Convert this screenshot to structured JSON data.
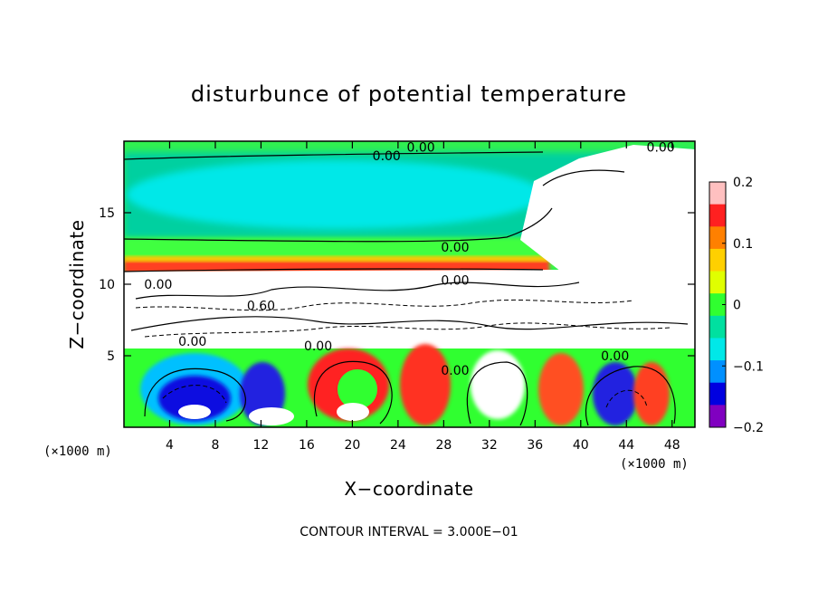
{
  "chart_data": {
    "type": "heatmap",
    "title": "disturbunce of potential temperature",
    "xlabel": "X−coordinate",
    "ylabel": "Z−coordinate",
    "x_unit": "(×1000 m)",
    "y_unit": "(×1000 m)",
    "xlim": [
      0,
      50
    ],
    "ylim": [
      0,
      20
    ],
    "x_ticks": [
      4,
      8,
      12,
      16,
      20,
      24,
      28,
      32,
      36,
      40,
      44,
      48
    ],
    "y_ticks": [
      5,
      10,
      15
    ],
    "colorbar": {
      "ticks": [
        0.2,
        0.1,
        0,
        -0.1,
        -0.2
      ],
      "tick_labels": [
        "0.2",
        "0.1",
        "0",
        "−0.1",
        "−0.2"
      ],
      "range": [
        -0.2,
        0.2
      ],
      "colors": [
        "#ffc0c0",
        "#ff2020",
        "#ff8000",
        "#ffd000",
        "#e0ff00",
        "#30ff30",
        "#00e0a0",
        "#00e8e8",
        "#0090ff",
        "#0000e0",
        "#8000c0"
      ]
    },
    "contour_labels": [
      {
        "text": "0.00",
        "x": 23,
        "z": 19.0
      },
      {
        "text": "0.00",
        "x": 26,
        "z": 19.6
      },
      {
        "text": "0.00",
        "x": 47,
        "z": 19.6
      },
      {
        "text": "0.00",
        "x": 29,
        "z": 12.6
      },
      {
        "text": "0.00",
        "x": 29,
        "z": 10.3
      },
      {
        "text": "0.00",
        "x": 3,
        "z": 10.0
      },
      {
        "text": "0.60",
        "x": 12,
        "z": 8.5
      },
      {
        "text": "0.00",
        "x": 6,
        "z": 6.0
      },
      {
        "text": "0.00",
        "x": 17,
        "z": 5.7
      },
      {
        "text": "0.00",
        "x": 29,
        "z": 4.0
      },
      {
        "text": "0.00",
        "x": 43,
        "z": 5.0
      }
    ],
    "contour_interval": "CONTOUR INTERVAL = 3.000E−01"
  }
}
